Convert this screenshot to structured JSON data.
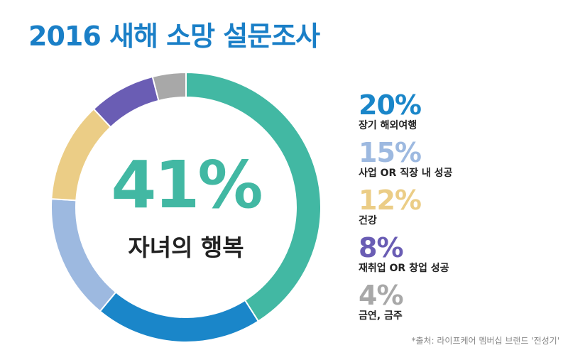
{
  "title": "2016 새해 소망 설문조사",
  "center": {
    "value": "41%",
    "label": "자녀의 행복"
  },
  "source": "*출처: 라이프케어 멤버십 브랜드 '전성기'",
  "chart_data": {
    "type": "pie",
    "title": "2016 새해 소망 설문조사",
    "slices": [
      {
        "label": "자녀의 행복",
        "value": 41,
        "display": "41%",
        "color": "#42b8a3"
      },
      {
        "label": "장기 해외여행",
        "value": 20,
        "display": "20%",
        "color": "#1a86c9"
      },
      {
        "label": "사업 OR 직장 내 성공",
        "value": 15,
        "display": "15%",
        "color": "#9db9e0"
      },
      {
        "label": "건강",
        "value": 12,
        "display": "12%",
        "color": "#ebcd86"
      },
      {
        "label": "재취업 OR 창업 성공",
        "value": 8,
        "display": "8%",
        "color": "#6a5db4"
      },
      {
        "label": "금연, 금주",
        "value": 4,
        "display": "4%",
        "color": "#a8a8a8"
      }
    ]
  }
}
